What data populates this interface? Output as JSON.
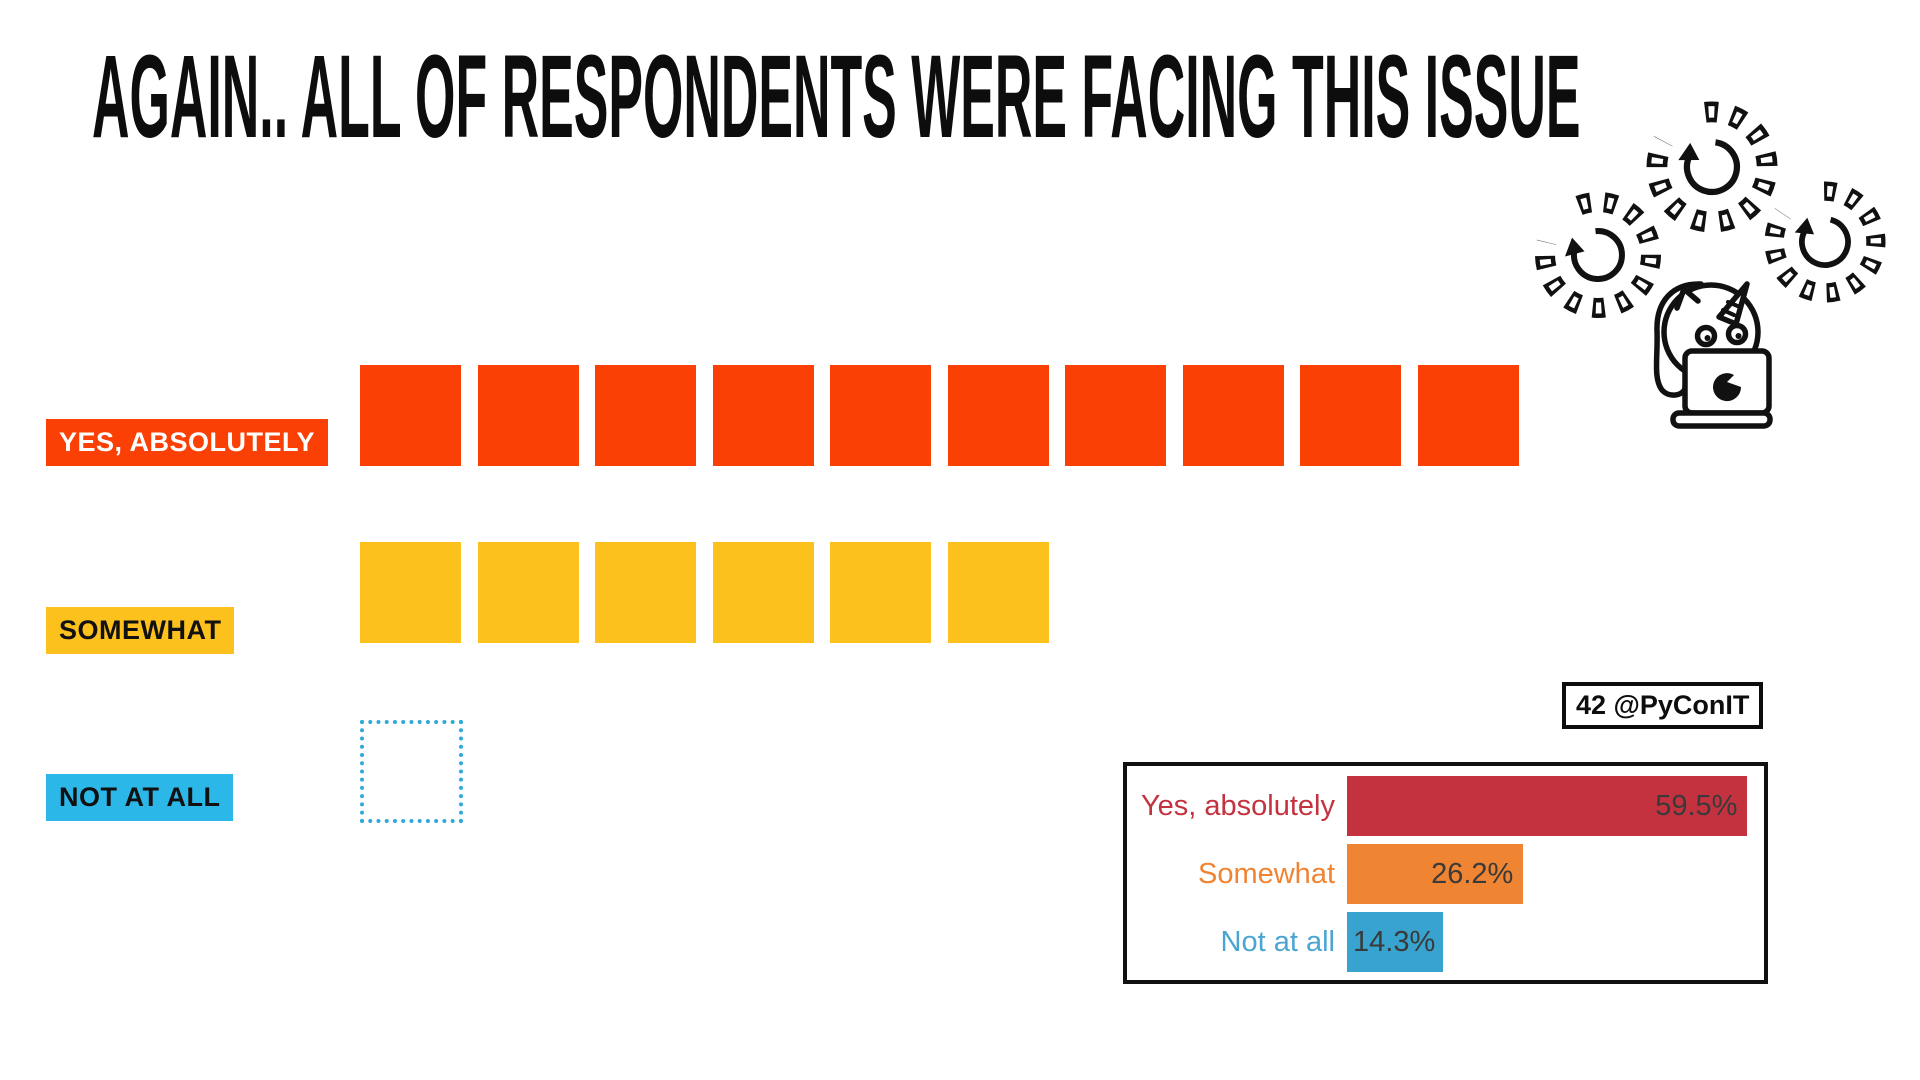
{
  "slide": {
    "title": "AGAIN.. ALL OF RESPONDENTS WERE FACING THIS ISSUE",
    "background": "#FFFFFF"
  },
  "badge": {
    "text": "42 @PyConIT"
  },
  "waffle": {
    "rows": [
      {
        "label": "YES, ABSOLUTELY",
        "count": 10,
        "square_color": "#FA4005",
        "square_style": "filled",
        "label_bg": "#FA4005",
        "label_color": "#FFFFFF"
      },
      {
        "label": "SOMEWHAT",
        "count": 6,
        "square_color": "#FCC11D",
        "square_style": "filled",
        "label_bg": "#FCC11D",
        "label_color": "#111111"
      },
      {
        "label": "NOT AT ALL",
        "count": 1,
        "square_color": "#2FA9DB",
        "square_style": "dotted",
        "label_bg": "#2BB7E8",
        "label_color": "#111111"
      }
    ]
  },
  "chart_data": [
    {
      "type": "bar",
      "subtype": "unit-waffle",
      "title": "AGAIN.. ALL OF RESPONDENTS WERE FACING THIS ISSUE",
      "categories": [
        "YES, ABSOLUTELY",
        "SOMEWHAT",
        "NOT AT ALL"
      ],
      "values": [
        10,
        6,
        1
      ],
      "colors": [
        "#FA4005",
        "#FCC11D",
        "#2FA9DB"
      ],
      "square_styles": [
        "filled",
        "filled",
        "dotted-outline"
      ],
      "legend_position": "left"
    },
    {
      "type": "bar",
      "orientation": "horizontal",
      "categories": [
        "Yes, absolutely",
        "Somewhat",
        "Not at all"
      ],
      "values": [
        59.5,
        26.2,
        14.3
      ],
      "value_labels": [
        "59.5%",
        "26.2%",
        "14.3%"
      ],
      "colors": [
        "#C43240",
        "#EF8433",
        "#37A3CE"
      ],
      "label_colors": [
        "#C43240",
        "#EF8433",
        "#4BA5D3"
      ],
      "value_text_color": "#3A3A3A",
      "xlim": [
        0,
        63
      ],
      "grid": false,
      "legend_position": "none"
    }
  ],
  "icons": {
    "spinner": "loading-spinner-icon",
    "mascot": "unicorn-laptop-icon"
  }
}
